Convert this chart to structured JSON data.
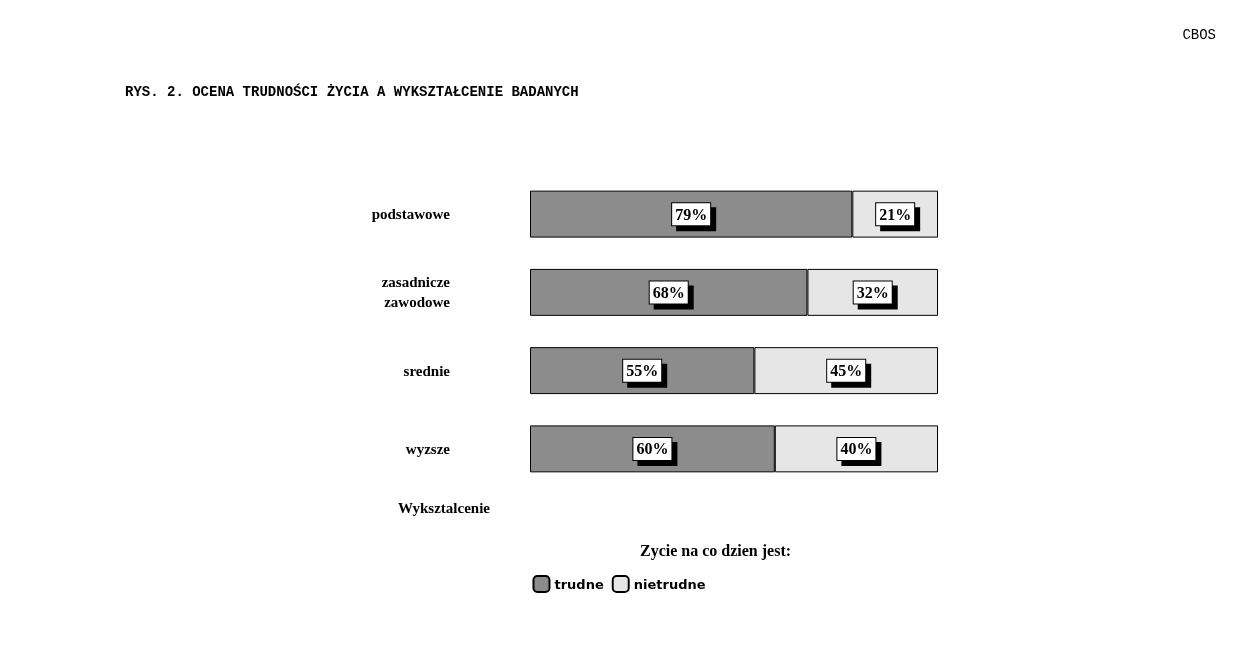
{
  "chart_data": {
    "type": "bar",
    "orientation": "horizontal",
    "stacked": true,
    "title": "RYS. 2. OCENA TRUDNOŚCI ŻYCIA A WYKSZTAŁCENIE BADANYCH",
    "ylabel": "Wyksztalcenie",
    "legend_title": "Zycie na co dzien jest:",
    "legend": "bottom",
    "annotations": [
      "CBOS"
    ],
    "categories": [
      "podstawowe",
      "zasadnicze\nzawodowe",
      "srednie",
      "wyzsze"
    ],
    "series": [
      {
        "name": "trudne",
        "color": "#8c8c8c",
        "values": [
          79,
          68,
          55,
          60
        ],
        "value_labels": [
          "79%",
          "68%",
          "55%",
          "60%"
        ]
      },
      {
        "name": "nietrudne",
        "color": "#e6e6e6",
        "values": [
          21,
          32,
          45,
          40
        ],
        "value_labels": [
          "21%",
          "32%",
          "45%",
          "40%"
        ]
      }
    ]
  }
}
